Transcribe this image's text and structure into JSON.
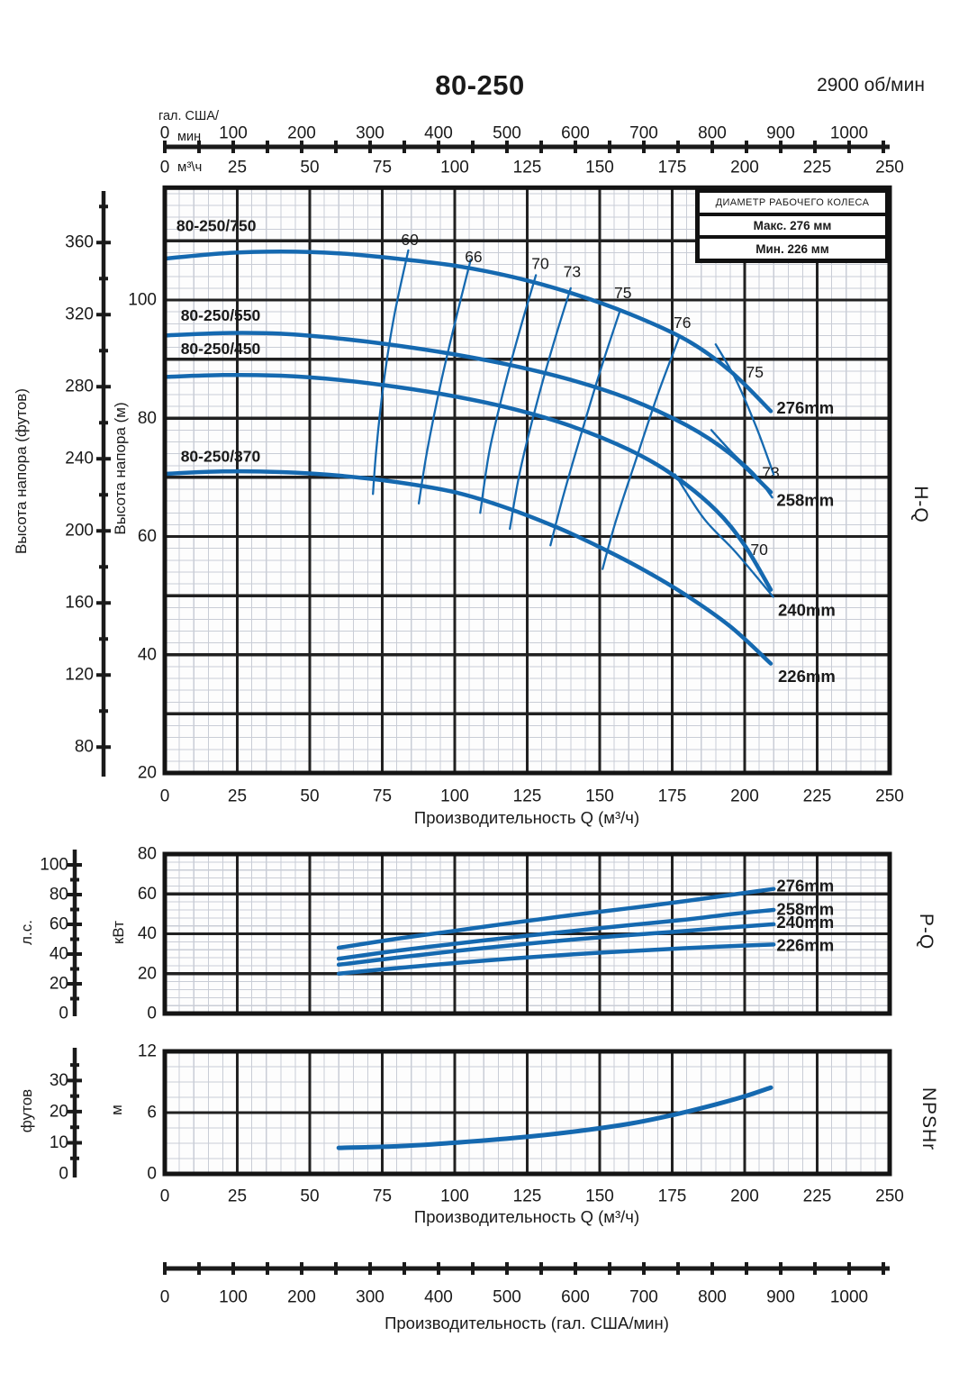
{
  "header": {
    "title": "80-250",
    "rpm": "2900 об/мин"
  },
  "impeller_box": {
    "title": "ДИАМЕТР РАБОЧЕГО КОЛЕСА",
    "max_label": "Макс. 276 мм",
    "min_label": "Мин. 226 мм"
  },
  "colors": {
    "curve": "#1569b0",
    "frame": "#141414",
    "grid_major": "#212121",
    "grid_minor": "#c9cdd6",
    "chart_bg": "#fdfdfd",
    "text": "#1a1a1a"
  },
  "gpm_axis_top": {
    "unit_line1": "гал. США/",
    "unit_line2": "мин",
    "ticks": [
      0,
      100,
      200,
      300,
      400,
      500,
      600,
      700,
      800,
      900,
      1000
    ],
    "minor_step": 50
  },
  "m3h_header": {
    "unit": "м³\\ч",
    "ticks": [
      0,
      25,
      50,
      75,
      100,
      125,
      150,
      175,
      200,
      225,
      250
    ]
  },
  "gpm_axis_bottom": {
    "label": "Производительность (гал. США/мин)",
    "ticks": [
      0,
      100,
      200,
      300,
      400,
      500,
      600,
      700,
      800,
      900,
      1000
    ],
    "minor_step": 50
  },
  "chart_data": [
    {
      "id": "hq",
      "type": "line",
      "right_label": "H-Q",
      "xlabel": "Производительность Q (м³/ч)",
      "ylabel": "Высота напора (м)",
      "ylabel2": "Высота напора (футов)",
      "x_range": [
        0,
        250
      ],
      "y_range_m": [
        20,
        119
      ],
      "x_ticks": [
        0,
        25,
        50,
        75,
        100,
        125,
        150,
        175,
        200,
        225,
        250
      ],
      "y_ticks_m": [
        20,
        40,
        60,
        80,
        100
      ],
      "y_ticks_ft": [
        80,
        120,
        160,
        200,
        240,
        280,
        320,
        360
      ],
      "series": [
        {
          "name": "80-250/750",
          "name_at": [
            4,
            112.6
          ],
          "dia": "276mm",
          "dia_at": [
            211,
            81.8
          ],
          "points": [
            [
              0,
              107
            ],
            [
              20,
              107.9
            ],
            [
              40,
              108.2
            ],
            [
              60,
              107.9
            ],
            [
              80,
              107
            ],
            [
              100,
              105.8
            ],
            [
              120,
              103.9
            ],
            [
              140,
              101.2
            ],
            [
              160,
              97.7
            ],
            [
              180,
              93.2
            ],
            [
              195,
              88
            ],
            [
              209,
              81.2
            ]
          ]
        },
        {
          "name": "80-250/550",
          "name_at": [
            5.5,
            97.4
          ],
          "dia": "258mm",
          "dia_at": [
            211,
            66.2
          ],
          "points": [
            [
              0,
              94
            ],
            [
              20,
              94.4
            ],
            [
              40,
              94.3
            ],
            [
              60,
              93.5
            ],
            [
              80,
              92.3
            ],
            [
              100,
              90.8
            ],
            [
              120,
              88.9
            ],
            [
              140,
              86.5
            ],
            [
              160,
              83.3
            ],
            [
              180,
              78.8
            ],
            [
              195,
              74
            ],
            [
              209,
              67.5
            ]
          ]
        },
        {
          "name": "80-250/450",
          "name_at": [
            5.5,
            91.8
          ],
          "dia": "240mm",
          "dia_at": [
            211.5,
            47.6
          ],
          "points": [
            [
              0,
              87
            ],
            [
              20,
              87.3
            ],
            [
              40,
              87.2
            ],
            [
              60,
              86.5
            ],
            [
              80,
              85.3
            ],
            [
              100,
              83.7
            ],
            [
              120,
              81.6
            ],
            [
              140,
              78.7
            ],
            [
              160,
              74.7
            ],
            [
              175,
              70.5
            ],
            [
              190,
              64.5
            ],
            [
              200,
              58.5
            ],
            [
              209,
              51
            ]
          ]
        },
        {
          "name": "80-250/370",
          "name_at": [
            5.5,
            73.6
          ],
          "dia": "226mm",
          "dia_at": [
            211.5,
            36.4
          ],
          "points": [
            [
              0,
              70.6
            ],
            [
              20,
              71
            ],
            [
              40,
              70.9
            ],
            [
              60,
              70.3
            ],
            [
              80,
              69.2
            ],
            [
              100,
              67.5
            ],
            [
              117,
              65
            ],
            [
              135,
              61.6
            ],
            [
              150,
              58.2
            ],
            [
              165,
              54.4
            ],
            [
              180,
              50
            ],
            [
              195,
              44.8
            ],
            [
              209,
              38.5
            ]
          ]
        }
      ],
      "efficiency_contours": [
        {
          "label": "60",
          "label_at": [
            84.5,
            110.2
          ],
          "points": [
            [
              84,
              108.4
            ],
            [
              79,
              97
            ],
            [
              75.5,
              86
            ],
            [
              73,
              75
            ],
            [
              71.8,
              67.2
            ]
          ]
        },
        {
          "label": "66",
          "label_at": [
            106.5,
            107.3
          ],
          "points": [
            [
              105.5,
              106.8
            ],
            [
              100,
              96
            ],
            [
              95,
              85.5
            ],
            [
              90.5,
              74.5
            ],
            [
              87.6,
              65.6
            ]
          ]
        },
        {
          "label": "70",
          "label_at": [
            129.5,
            106.2
          ],
          "points": [
            [
              128,
              104.2
            ],
            [
              122.5,
              95
            ],
            [
              117,
              85
            ],
            [
              112,
              74.5
            ],
            [
              108.8,
              64
            ]
          ]
        },
        {
          "label": "73",
          "label_at": [
            140.5,
            104.8
          ],
          "points": [
            [
              140,
              102
            ],
            [
              134,
              92.5
            ],
            [
              128,
              82
            ],
            [
              122.5,
              71
            ],
            [
              119,
              61.3
            ]
          ]
        },
        {
          "label": "75",
          "label_at": [
            158,
            101.2
          ],
          "points": [
            [
              157,
              98.2
            ],
            [
              150.5,
              88.5
            ],
            [
              144,
              78
            ],
            [
              137.5,
              67
            ],
            [
              133,
              58.5
            ]
          ]
        },
        {
          "label": "76",
          "label_at": [
            178.5,
            96.2
          ],
          "points": [
            [
              177.5,
              93.8
            ],
            [
              170,
              84
            ],
            [
              162.5,
              73
            ],
            [
              155.5,
              62.5
            ],
            [
              151,
              54.5
            ]
          ]
        },
        {
          "label": "75",
          "label_at": [
            203.5,
            87.8
          ],
          "points": [
            [
              190,
              92.5
            ],
            [
              197,
              86.5
            ],
            [
              204,
              78.5
            ],
            [
              210,
              70.5
            ]
          ]
        },
        {
          "label": "73",
          "label_at": [
            209,
            70.8
          ],
          "points": [
            [
              188.5,
              78
            ],
            [
              196,
              74
            ],
            [
              203.5,
              70.5
            ],
            [
              209.5,
              66.6
            ]
          ]
        },
        {
          "label": "70",
          "label_at": [
            205,
            57.8
          ],
          "points": [
            [
              176,
              70.5
            ],
            [
              186,
              63
            ],
            [
              197,
              57.3
            ],
            [
              209.8,
              49.8
            ]
          ]
        }
      ]
    },
    {
      "id": "pq",
      "type": "line",
      "right_label": "P-Q",
      "ylabel": "кВт",
      "ylabel2": "л.с.",
      "x_range": [
        0,
        250
      ],
      "y_range_kw": [
        0,
        80
      ],
      "y_ticks_kw": [
        0,
        20,
        40,
        60,
        80
      ],
      "y_ticks_hp": [
        0,
        20,
        40,
        60,
        80,
        100
      ],
      "series": [
        {
          "dia": "276mm",
          "dia_at": [
            211,
            64.2
          ],
          "points": [
            [
              60,
              33
            ],
            [
              80,
              37.5
            ],
            [
              100,
              41.5
            ],
            [
              120,
              45.5
            ],
            [
              140,
              49.3
            ],
            [
              160,
              52.8
            ],
            [
              180,
              56.5
            ],
            [
              195,
              59.5
            ],
            [
              210,
              62.5
            ]
          ]
        },
        {
          "dia": "258mm",
          "dia_at": [
            211,
            52.4
          ],
          "points": [
            [
              60,
              27.5
            ],
            [
              80,
              31.5
            ],
            [
              100,
              35
            ],
            [
              120,
              38.3
            ],
            [
              140,
              41.3
            ],
            [
              160,
              44.3
            ],
            [
              180,
              47.2
            ],
            [
              195,
              49.8
            ],
            [
              210,
              52
            ]
          ]
        },
        {
          "dia": "240mm",
          "dia_at": [
            211,
            45.8
          ],
          "points": [
            [
              60,
              24.5
            ],
            [
              80,
              28
            ],
            [
              100,
              31.3
            ],
            [
              120,
              34.3
            ],
            [
              140,
              37
            ],
            [
              160,
              39.3
            ],
            [
              180,
              41.5
            ],
            [
              195,
              43.2
            ],
            [
              210,
              44.8
            ]
          ]
        },
        {
          "dia": "226mm",
          "dia_at": [
            211,
            34.3
          ],
          "points": [
            [
              60,
              20
            ],
            [
              80,
              22.8
            ],
            [
              100,
              25.3
            ],
            [
              120,
              27.6
            ],
            [
              140,
              29.6
            ],
            [
              160,
              31.3
            ],
            [
              180,
              32.8
            ],
            [
              195,
              33.8
            ],
            [
              210,
              34.6
            ]
          ]
        }
      ]
    },
    {
      "id": "npshr",
      "type": "line",
      "right_label": "NPSHr",
      "xlabel": "Производительность Q (м³/ч)",
      "ylabel": "м",
      "ylabel2": "футов",
      "x_range": [
        0,
        250
      ],
      "y_range_m": [
        0,
        12
      ],
      "x_ticks": [
        0,
        25,
        50,
        75,
        100,
        125,
        150,
        175,
        200,
        225,
        250
      ],
      "y_ticks_m": [
        0,
        6,
        12
      ],
      "y_ticks_ft": [
        0,
        10,
        20,
        30
      ],
      "series": [
        {
          "points": [
            [
              60,
              2.55
            ],
            [
              80,
              2.7
            ],
            [
              100,
              3.05
            ],
            [
              120,
              3.5
            ],
            [
              140,
              4.1
            ],
            [
              160,
              4.9
            ],
            [
              175,
              5.75
            ],
            [
              190,
              6.8
            ],
            [
              200,
              7.6
            ],
            [
              209,
              8.45
            ]
          ]
        }
      ]
    }
  ]
}
